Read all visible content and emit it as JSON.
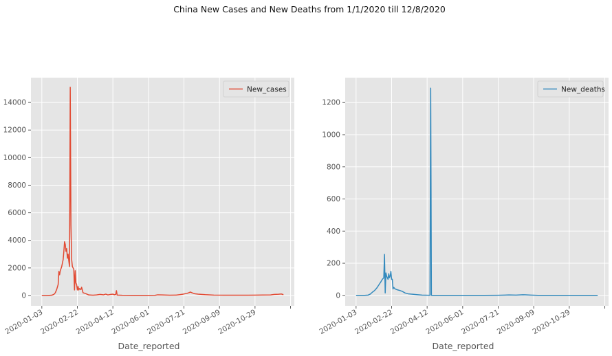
{
  "title": "China New Cases and New Deaths from 1/1/2020 till 12/8/2020",
  "chart_data": [
    {
      "type": "line",
      "title": "",
      "xlabel": "Date_reported",
      "ylabel": "",
      "x_range": [
        "2020-01-03",
        "2020-12-08"
      ],
      "ylim": [
        -750,
        15800
      ],
      "yticks": [
        0,
        2000,
        4000,
        6000,
        8000,
        10000,
        12000,
        14000
      ],
      "xtick_labels": [
        "2020-01-03",
        "2020-02-22",
        "2020-04-12",
        "2020-06-01",
        "2020-07-21",
        "2020-09-09",
        "2020-10-29"
      ],
      "grid": true,
      "legend": "top-right",
      "series": [
        {
          "name": "New_cases",
          "color": "#E24A33",
          "points": [
            [
              "2020-01-03",
              0
            ],
            [
              "2020-01-10",
              0
            ],
            [
              "2020-01-17",
              20
            ],
            [
              "2020-01-20",
              80
            ],
            [
              "2020-01-22",
              200
            ],
            [
              "2020-01-24",
              450
            ],
            [
              "2020-01-26",
              800
            ],
            [
              "2020-01-27",
              1750
            ],
            [
              "2020-01-28",
              1500
            ],
            [
              "2020-01-29",
              1800
            ],
            [
              "2020-01-31",
              2100
            ],
            [
              "2020-02-02",
              2600
            ],
            [
              "2020-02-03",
              3200
            ],
            [
              "2020-02-04",
              3900
            ],
            [
              "2020-02-05",
              3700
            ],
            [
              "2020-02-06",
              3200
            ],
            [
              "2020-02-07",
              3400
            ],
            [
              "2020-02-08",
              2700
            ],
            [
              "2020-02-09",
              3000
            ],
            [
              "2020-02-10",
              2500
            ],
            [
              "2020-02-11",
              2100
            ],
            [
              "2020-02-12",
              15100
            ],
            [
              "2020-02-13",
              5100
            ],
            [
              "2020-02-14",
              2600
            ],
            [
              "2020-02-15",
              2100
            ],
            [
              "2020-02-16",
              2000
            ],
            [
              "2020-02-17",
              1900
            ],
            [
              "2020-02-18",
              400
            ],
            [
              "2020-02-19",
              1800
            ],
            [
              "2020-02-20",
              900
            ],
            [
              "2020-02-21",
              800
            ],
            [
              "2020-02-22",
              400
            ],
            [
              "2020-02-23",
              650
            ],
            [
              "2020-02-24",
              400
            ],
            [
              "2020-02-25",
              500
            ],
            [
              "2020-02-27",
              430
            ],
            [
              "2020-02-28",
              600
            ],
            [
              "2020-03-01",
              200
            ],
            [
              "2020-03-05",
              130
            ],
            [
              "2020-03-09",
              40
            ],
            [
              "2020-03-15",
              20
            ],
            [
              "2020-03-20",
              40
            ],
            [
              "2020-03-25",
              80
            ],
            [
              "2020-03-30",
              50
            ],
            [
              "2020-04-02",
              100
            ],
            [
              "2020-04-05",
              40
            ],
            [
              "2020-04-08",
              70
            ],
            [
              "2020-04-12",
              100
            ],
            [
              "2020-04-14",
              50
            ],
            [
              "2020-04-16",
              80
            ],
            [
              "2020-04-17",
              350
            ],
            [
              "2020-04-18",
              30
            ],
            [
              "2020-04-25",
              15
            ],
            [
              "2020-05-10",
              10
            ],
            [
              "2020-06-01",
              5
            ],
            [
              "2020-06-10",
              10
            ],
            [
              "2020-06-14",
              50
            ],
            [
              "2020-06-20",
              40
            ],
            [
              "2020-07-01",
              20
            ],
            [
              "2020-07-10",
              30
            ],
            [
              "2020-07-15",
              60
            ],
            [
              "2020-07-20",
              100
            ],
            [
              "2020-07-25",
              150
            ],
            [
              "2020-07-28",
              200
            ],
            [
              "2020-07-30",
              250
            ],
            [
              "2020-08-02",
              180
            ],
            [
              "2020-08-05",
              130
            ],
            [
              "2020-08-10",
              100
            ],
            [
              "2020-08-20",
              60
            ],
            [
              "2020-09-01",
              30
            ],
            [
              "2020-09-15",
              20
            ],
            [
              "2020-10-01",
              20
            ],
            [
              "2020-10-20",
              25
            ],
            [
              "2020-11-01",
              30
            ],
            [
              "2020-11-20",
              40
            ],
            [
              "2020-11-25",
              80
            ],
            [
              "2020-12-01",
              90
            ],
            [
              "2020-12-05",
              110
            ],
            [
              "2020-12-08",
              60
            ]
          ]
        }
      ]
    },
    {
      "type": "line",
      "title": "",
      "xlabel": "Date_reported",
      "ylabel": "",
      "x_range": [
        "2020-01-03",
        "2020-12-08"
      ],
      "ylim": [
        -65,
        1355
      ],
      "yticks": [
        0,
        200,
        400,
        600,
        800,
        1000,
        1200
      ],
      "xtick_labels": [
        "2020-01-03",
        "2020-02-22",
        "2020-04-12",
        "2020-06-01",
        "2020-07-21",
        "2020-09-09",
        "2020-10-29"
      ],
      "grid": true,
      "legend": "top-right",
      "series": [
        {
          "name": "New_deaths",
          "color": "#348ABD",
          "points": [
            [
              "2020-01-03",
              0
            ],
            [
              "2020-01-15",
              0
            ],
            [
              "2020-01-20",
              2
            ],
            [
              "2020-01-23",
              8
            ],
            [
              "2020-01-26",
              20
            ],
            [
              "2020-01-29",
              30
            ],
            [
              "2020-02-01",
              45
            ],
            [
              "2020-02-04",
              65
            ],
            [
              "2020-02-07",
              85
            ],
            [
              "2020-02-09",
              100
            ],
            [
              "2020-02-11",
              110
            ],
            [
              "2020-02-12",
              255
            ],
            [
              "2020-02-13",
              15
            ],
            [
              "2020-02-14",
              140
            ],
            [
              "2020-02-15",
              120
            ],
            [
              "2020-02-16",
              110
            ],
            [
              "2020-02-17",
              100
            ],
            [
              "2020-02-18",
              135
            ],
            [
              "2020-02-19",
              110
            ],
            [
              "2020-02-20",
              120
            ],
            [
              "2020-02-21",
              150
            ],
            [
              "2020-02-22",
              100
            ],
            [
              "2020-02-23",
              100
            ],
            [
              "2020-02-24",
              40
            ],
            [
              "2020-02-25",
              50
            ],
            [
              "2020-02-27",
              40
            ],
            [
              "2020-03-01",
              35
            ],
            [
              "2020-03-05",
              30
            ],
            [
              "2020-03-08",
              25
            ],
            [
              "2020-03-12",
              15
            ],
            [
              "2020-03-16",
              10
            ],
            [
              "2020-03-20",
              8
            ],
            [
              "2020-03-25",
              6
            ],
            [
              "2020-03-30",
              4
            ],
            [
              "2020-04-05",
              2
            ],
            [
              "2020-04-15",
              1
            ],
            [
              "2020-04-16",
              1
            ],
            [
              "2020-04-17",
              1290
            ],
            [
              "2020-04-18",
              0
            ],
            [
              "2020-05-01",
              0
            ],
            [
              "2020-06-01",
              0
            ],
            [
              "2020-07-01",
              0
            ],
            [
              "2020-07-20",
              1
            ],
            [
              "2020-07-30",
              2
            ],
            [
              "2020-08-05",
              3
            ],
            [
              "2020-08-15",
              2
            ],
            [
              "2020-08-25",
              4
            ],
            [
              "2020-09-05",
              2
            ],
            [
              "2020-09-15",
              0
            ],
            [
              "2020-10-01",
              0
            ],
            [
              "2020-11-01",
              0
            ],
            [
              "2020-12-08",
              0
            ]
          ]
        }
      ]
    }
  ]
}
